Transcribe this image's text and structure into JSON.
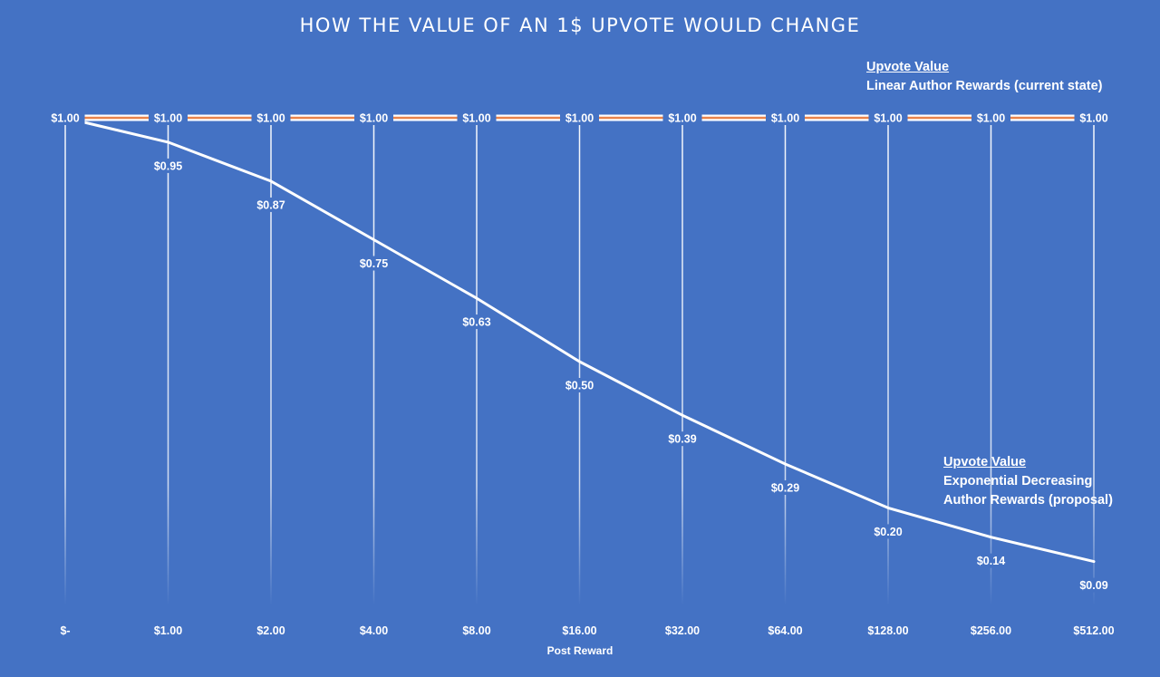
{
  "chart_data": {
    "type": "line",
    "title": "HOW THE VALUE OF AN 1$ UPVOTE WOULD CHANGE",
    "xlabel": "Post Reward",
    "ylabel": "",
    "categories": [
      "$-",
      "$1.00",
      "$2.00",
      "$4.00",
      "$8.00",
      "$16.00",
      "$32.00",
      "$64.00",
      "$128.00",
      "$256.00",
      "$512.00"
    ],
    "ylim": [
      0,
      1
    ],
    "grid": "vertical",
    "series": [
      {
        "key": "linear",
        "color": "#E9834A",
        "values": [
          1.0,
          1.0,
          1.0,
          1.0,
          1.0,
          1.0,
          1.0,
          1.0,
          1.0,
          1.0,
          1.0
        ],
        "labels": [
          "$1.00",
          "$1.00",
          "$1.00",
          "$1.00",
          "$1.00",
          "$1.00",
          "$1.00",
          "$1.00",
          "$1.00",
          "$1.00",
          "$1.00"
        ]
      },
      {
        "key": "exponential",
        "color": "#FFFFFF",
        "values": [
          1.0,
          0.95,
          0.87,
          0.75,
          0.63,
          0.5,
          0.39,
          0.29,
          0.2,
          0.14,
          0.09
        ],
        "labels": [
          "",
          "$0.95",
          "$0.87",
          "$0.75",
          "$0.63",
          "$0.50",
          "$0.39",
          "$0.29",
          "$0.20",
          "$0.14",
          "$0.09"
        ]
      }
    ],
    "annotations": {
      "linear": {
        "title": "Upvote Value",
        "lines": [
          "Linear Author Rewards (current state)"
        ]
      },
      "exponential": {
        "title": "Upvote Value",
        "lines": [
          "Exponential Decreasing",
          "Author Rewards (proposal)"
        ]
      }
    }
  }
}
